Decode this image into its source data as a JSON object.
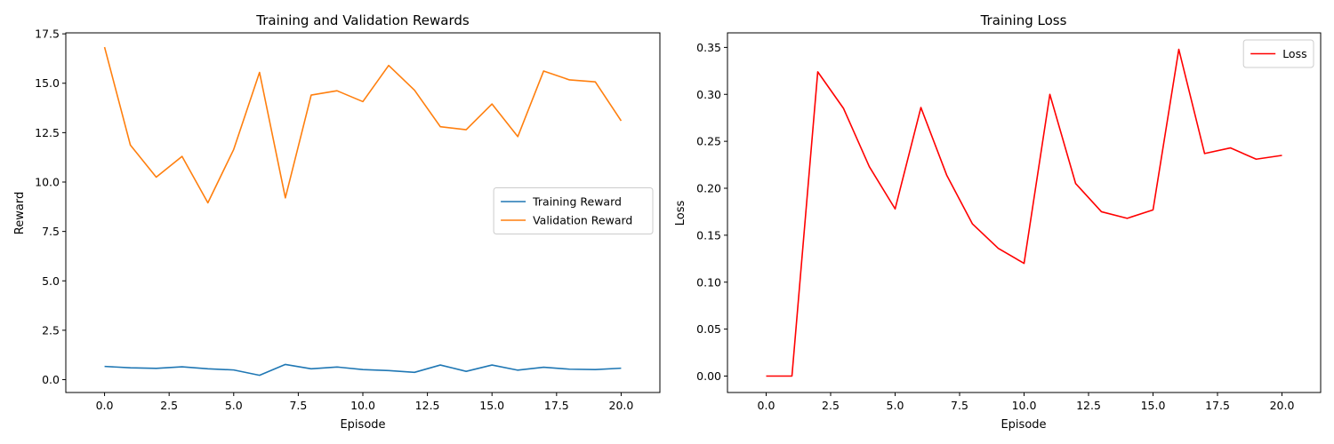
{
  "chart_data": [
    {
      "type": "line",
      "title": "Training and Validation Rewards",
      "xlabel": "Episode",
      "ylabel": "Reward",
      "xlim": [
        -1.5,
        21.5
      ],
      "ylim": [
        -0.65,
        17.55
      ],
      "xticks": [
        0.0,
        2.5,
        5.0,
        7.5,
        10.0,
        12.5,
        15.0,
        17.5,
        20.0
      ],
      "xtick_labels": [
        "0.0",
        "2.5",
        "5.0",
        "7.5",
        "10.0",
        "12.5",
        "15.0",
        "17.5",
        "20.0"
      ],
      "yticks": [
        0.0,
        2.5,
        5.0,
        7.5,
        10.0,
        12.5,
        15.0,
        17.5
      ],
      "ytick_labels": [
        "0.0",
        "2.5",
        "5.0",
        "7.5",
        "10.0",
        "12.5",
        "15.0",
        "17.5"
      ],
      "grid": false,
      "legend_position": "center-right",
      "x": [
        0,
        1,
        2,
        3,
        4,
        5,
        6,
        7,
        8,
        9,
        10,
        11,
        12,
        13,
        14,
        15,
        16,
        17,
        18,
        19,
        20
      ],
      "series": [
        {
          "name": "Training Reward",
          "color": "#1f77b4",
          "values": [
            0.67,
            0.6,
            0.57,
            0.65,
            0.55,
            0.49,
            0.22,
            0.77,
            0.55,
            0.64,
            0.51,
            0.46,
            0.37,
            0.74,
            0.42,
            0.74,
            0.48,
            0.63,
            0.53,
            0.51,
            0.58
          ]
        },
        {
          "name": "Validation Reward",
          "color": "#ff7f0e",
          "values": [
            16.83,
            11.87,
            10.25,
            11.3,
            8.95,
            11.65,
            15.55,
            9.2,
            14.4,
            14.62,
            14.07,
            15.9,
            14.65,
            12.8,
            12.65,
            13.95,
            12.3,
            15.62,
            15.17,
            15.07,
            13.1
          ]
        }
      ]
    },
    {
      "type": "line",
      "title": "Training Loss",
      "xlabel": "Episode",
      "ylabel": "Loss",
      "xlim": [
        -1.5,
        21.5
      ],
      "ylim": [
        -0.0175,
        0.3655
      ],
      "xticks": [
        0.0,
        2.5,
        5.0,
        7.5,
        10.0,
        12.5,
        15.0,
        17.5,
        20.0
      ],
      "xtick_labels": [
        "0.0",
        "2.5",
        "5.0",
        "7.5",
        "10.0",
        "12.5",
        "15.0",
        "17.5",
        "20.0"
      ],
      "yticks": [
        0.0,
        0.05,
        0.1,
        0.15,
        0.2,
        0.25,
        0.3,
        0.35
      ],
      "ytick_labels": [
        "0.00",
        "0.05",
        "0.10",
        "0.15",
        "0.20",
        "0.25",
        "0.30",
        "0.35"
      ],
      "grid": false,
      "legend_position": "top-right",
      "x": [
        0,
        1,
        2,
        3,
        4,
        5,
        6,
        7,
        8,
        9,
        10,
        11,
        12,
        13,
        14,
        15,
        16,
        17,
        18,
        19,
        20
      ],
      "series": [
        {
          "name": "Loss",
          "color": "#ff0000",
          "values": [
            0.0,
            0.0,
            0.324,
            0.285,
            0.223,
            0.178,
            0.286,
            0.214,
            0.162,
            0.136,
            0.12,
            0.3,
            0.205,
            0.175,
            0.168,
            0.177,
            0.348,
            0.237,
            0.243,
            0.231,
            0.235
          ]
        }
      ]
    }
  ]
}
